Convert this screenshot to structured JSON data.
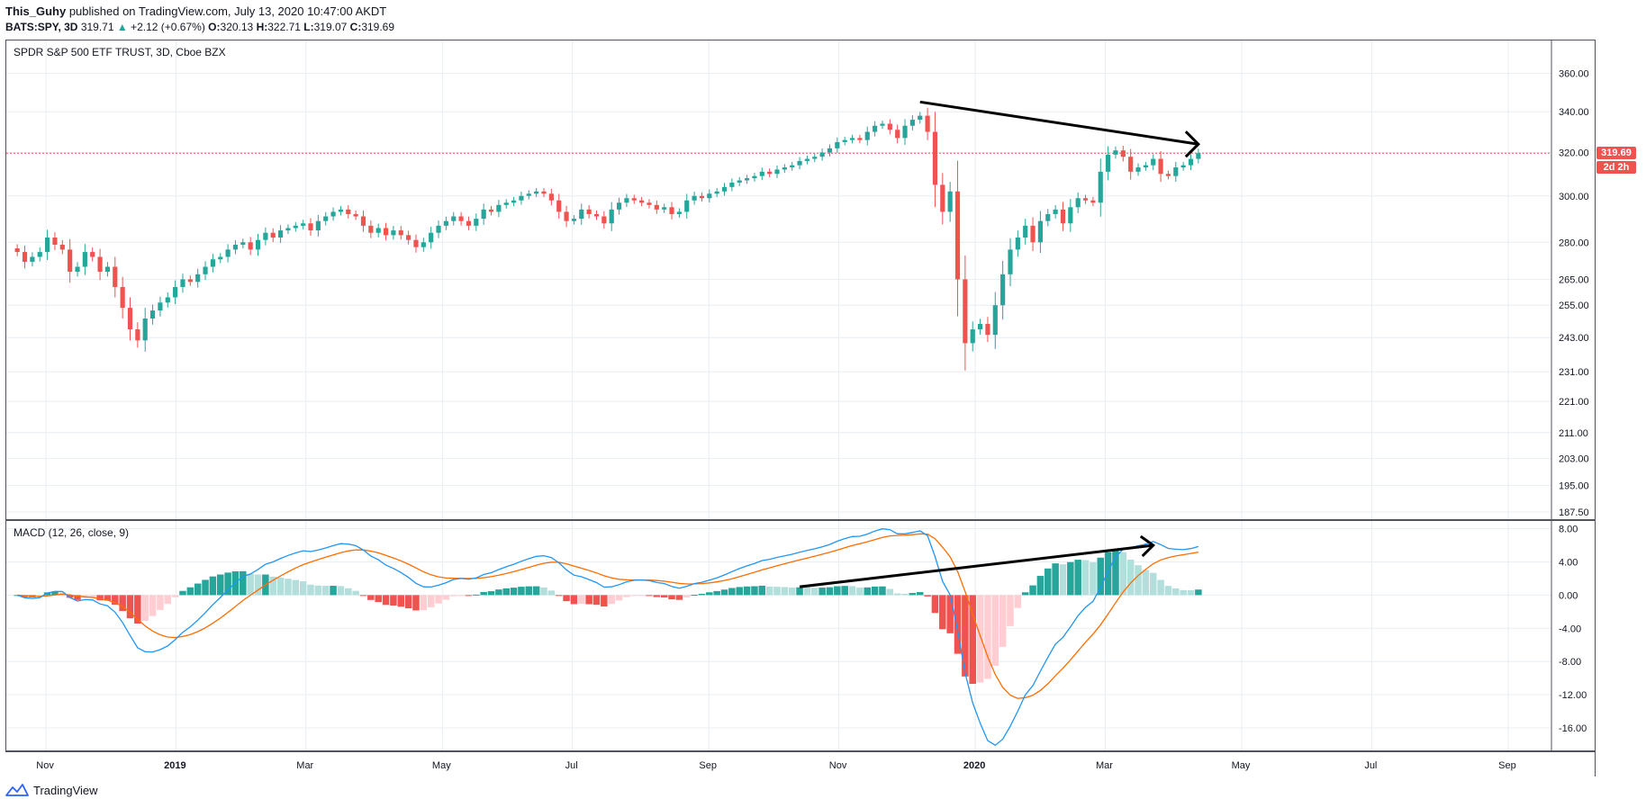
{
  "header": {
    "author": "This_Guhy",
    "published": "published on TradingView.com, July 13, 2020 10:47:00 AKDT",
    "symbol": "BATS:SPY, 3D",
    "last": "319.71",
    "change": "+2.12 (+0.67%)",
    "open_label": "O:",
    "open": "320.13",
    "high_label": "H:",
    "high": "322.71",
    "low_label": "L:",
    "low": "319.07",
    "close_label": "C:",
    "close": "319.69",
    "up_arrow": "▲"
  },
  "price_pane": {
    "legend": "SPDR S&P 500 ETF TRUST, 3D, Cboe BZX",
    "last_price_tag": "319.69",
    "countdown_tag": "2d 2h"
  },
  "macd_pane": {
    "legend": "MACD (12, 26, close, 9)"
  },
  "footer": {
    "brand": "TradingView"
  },
  "colors": {
    "up": "#26a69a",
    "down": "#ef5350",
    "hist_up_strong": "#26a69a",
    "hist_up_weak": "#b2dfdb",
    "hist_down_strong": "#ef5350",
    "hist_down_weak": "#ffcdd2",
    "macd_line": "#2196f3",
    "signal_line": "#ff6d00",
    "grid": "#e8eef2",
    "last_price": "#ef5350"
  },
  "chart_data": [
    {
      "type": "candlestick",
      "title": "SPDR S&P 500 ETF TRUST, 3D, Cboe BZX",
      "y_scale": "log",
      "ylim": [
        186,
        376
      ],
      "y_ticks": [
        360,
        340,
        320,
        300,
        280,
        265,
        255,
        243,
        231,
        221,
        211,
        203,
        195,
        187.5
      ],
      "y_tick_labels": [
        "360.00",
        "340.00",
        "320.00",
        "300.00",
        "280.00",
        "265.00",
        "255.00",
        "243.00",
        "231.00",
        "221.00",
        "211.00",
        "203.00",
        "195.00",
        "187.50"
      ],
      "x_ticks": [
        "Nov",
        "2019",
        "Mar",
        "May",
        "Jul",
        "Sep",
        "Nov",
        "2020",
        "Mar",
        "May",
        "Jul",
        "Sep"
      ],
      "last_price": 319.69,
      "series": [
        {
          "name": "",
          "close": [
            276,
            272,
            274,
            276,
            282,
            279,
            277,
            268,
            270,
            276,
            274,
            268,
            270,
            262,
            254,
            246,
            242,
            250,
            253,
            256,
            258,
            262,
            265,
            264,
            267,
            270,
            273,
            274,
            277,
            279,
            280,
            277,
            281,
            284,
            282,
            285,
            286,
            287,
            288,
            285,
            289,
            291,
            293,
            294,
            292,
            291,
            287,
            284,
            286,
            283,
            285,
            283,
            281,
            278,
            280,
            284,
            287,
            289,
            291,
            289,
            287,
            290,
            294,
            293,
            296,
            297,
            298,
            300,
            301,
            302,
            301,
            298,
            293,
            289,
            290,
            294,
            292,
            291,
            288,
            294,
            297,
            299,
            298,
            297,
            296,
            294,
            295,
            292,
            293,
            298,
            300,
            299,
            301,
            302,
            304,
            306,
            307,
            308,
            309,
            311,
            310,
            312,
            313,
            314,
            316,
            317,
            318,
            320,
            322,
            325,
            326,
            327,
            326,
            330,
            333,
            334,
            331,
            327,
            333,
            336,
            338,
            330,
            305,
            293,
            302,
            265,
            241,
            246,
            248,
            244,
            255,
            267,
            277,
            282,
            287,
            280,
            289,
            292,
            294,
            288,
            295,
            299,
            298,
            297,
            311,
            319,
            321,
            318,
            311,
            313,
            314,
            317,
            310,
            309,
            313,
            314,
            317,
            319.69
          ]
        }
      ],
      "annotations": [
        {
          "type": "trendline",
          "from": {
            "x": "late Jan 2020",
            "y": 345
          },
          "to": {
            "x": "early Jul 2020",
            "y": 324
          }
        }
      ]
    },
    {
      "type": "macd",
      "title": "MACD (12, 26, close, 9)",
      "ylim": [
        -18.5,
        8.5
      ],
      "y_ticks": [
        8,
        4,
        0,
        -4,
        -8,
        -12,
        -16
      ],
      "y_tick_labels": [
        "8.00",
        "4.00",
        "0.00",
        "-4.00",
        "-8.00",
        "-12.00",
        "-16.00"
      ],
      "series": [
        {
          "name": "MACD",
          "values": []
        },
        {
          "name": "Signal",
          "values": []
        },
        {
          "name": "Histogram",
          "values": []
        }
      ],
      "annotations": [
        {
          "type": "trendline",
          "from": {
            "x": "early Dec 2019",
            "y": 1.0
          },
          "to": {
            "x": "mid Jun 2020",
            "y": 6.0
          }
        }
      ]
    }
  ]
}
